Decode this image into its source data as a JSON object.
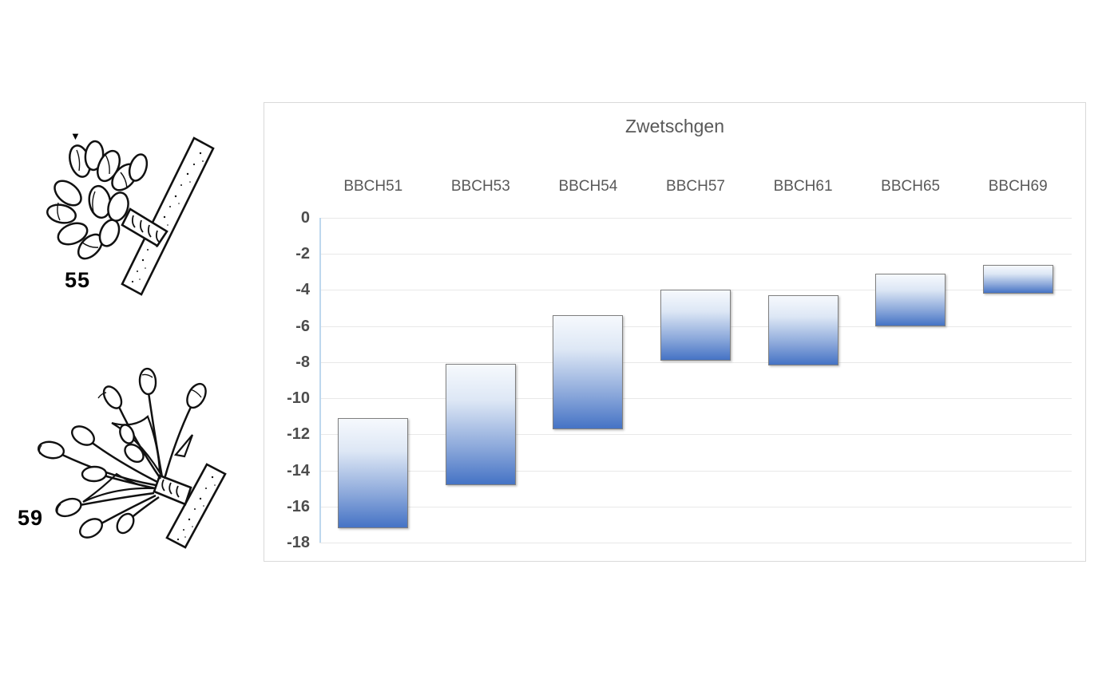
{
  "page": {
    "background": "#ffffff"
  },
  "illustrations": {
    "stage55": {
      "label": "55",
      "marker_icon": "▼",
      "alt": "Closed flower bud cluster on twig, BBCH stage 55"
    },
    "stage59": {
      "label": "59",
      "alt": "Flower buds with white petals on elongated stalks (balloon stage), BBCH stage 59"
    }
  },
  "chart_data": {
    "type": "bar",
    "subtype": "floating-range-columns",
    "title": "Zwetschgen",
    "categories": [
      "BBCH51",
      "BBCH53",
      "BBCH54",
      "BBCH57",
      "BBCH61",
      "BBCH65",
      "BBCH69"
    ],
    "ranges": [
      [
        -17.2,
        -11.1
      ],
      [
        -14.8,
        -8.1
      ],
      [
        -11.7,
        -5.4
      ],
      [
        -7.9,
        -4.0
      ],
      [
        -8.2,
        -4.3
      ],
      [
        -6.0,
        -3.1
      ],
      [
        -4.2,
        -2.6
      ]
    ],
    "ylim": [
      -18,
      0
    ],
    "y_ticks": [
      0,
      -2,
      -4,
      -6,
      -8,
      -10,
      -12,
      -14,
      -16,
      -18
    ],
    "xlabel": "",
    "ylabel": "",
    "grid": true,
    "legend": false,
    "category_labels_position": "top",
    "colors": {
      "bar_gradient_stops": [
        "#f6f9fd",
        "#dde7f5",
        "#8aa7da",
        "#4573c5"
      ],
      "bar_border": "#7f7f7f",
      "axis_line": "#bdd7ee",
      "gridline": "#e8e8e8",
      "title": "#595959",
      "tick_label": "#4d4d4d",
      "category_label": "#595959",
      "chart_border": "#d9d9d9"
    }
  }
}
